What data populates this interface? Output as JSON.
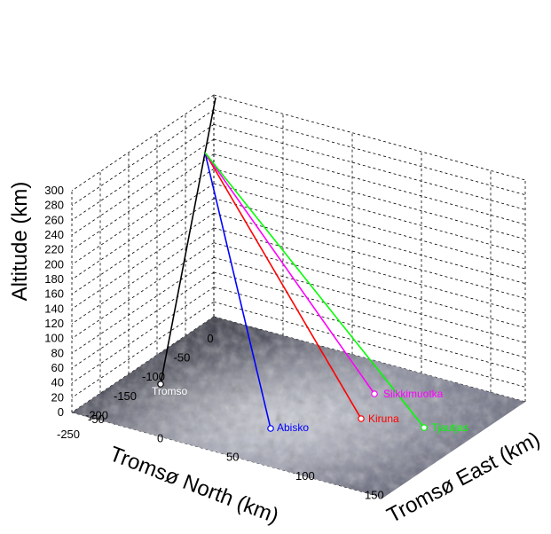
{
  "chart_data": {
    "type": "3d-line",
    "zlabel": "Altitude (km)",
    "xlabel": "Tromsø North (km)",
    "ylabel": "Tromsø East (km)",
    "zticks": [
      0,
      20,
      40,
      60,
      80,
      100,
      120,
      140,
      160,
      180,
      200,
      220,
      240,
      260,
      280,
      300
    ],
    "xticks": [
      0,
      -50,
      -100,
      -150,
      -200,
      -250
    ],
    "yticks": [
      -50,
      0,
      50,
      100,
      150
    ],
    "grid": true,
    "surface": "terrain",
    "sites": [
      {
        "name": "Tromso",
        "color": "#ffffff"
      },
      {
        "name": "Abisko",
        "color": "#0000ff"
      },
      {
        "name": "Kiruna",
        "color": "#ff0000"
      },
      {
        "name": "Silkkimuotka",
        "color": "#ff00ff"
      },
      {
        "name": "Tjautjas",
        "color": "#00ff00"
      }
    ]
  }
}
